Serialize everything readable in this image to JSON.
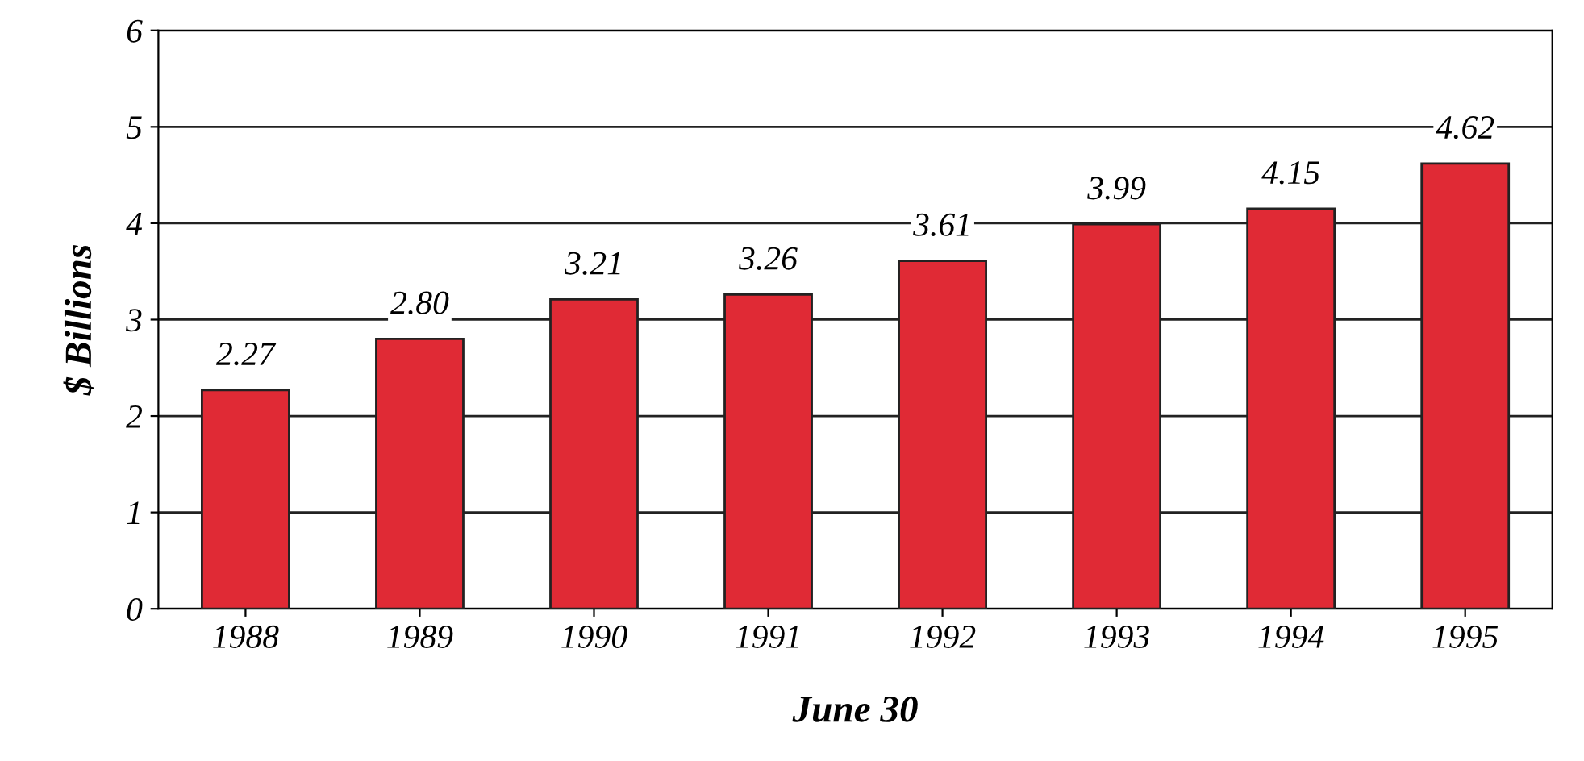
{
  "chart_data": {
    "type": "bar",
    "xlabel": "June 30",
    "ylabel": "$ Billions",
    "categories": [
      "1988",
      "1989",
      "1990",
      "1991",
      "1992",
      "1993",
      "1994",
      "1995"
    ],
    "values": [
      2.27,
      2.8,
      3.21,
      3.26,
      3.61,
      3.99,
      4.15,
      4.62
    ],
    "value_labels": [
      "2.27",
      "2.80",
      "3.21",
      "3.26",
      "3.61",
      "3.99",
      "4.15",
      "4.62"
    ],
    "color": "#e02a35",
    "ylim": [
      0,
      6
    ],
    "yticks": [
      0,
      1,
      2,
      3,
      4,
      5,
      6
    ],
    "grid": "y"
  }
}
